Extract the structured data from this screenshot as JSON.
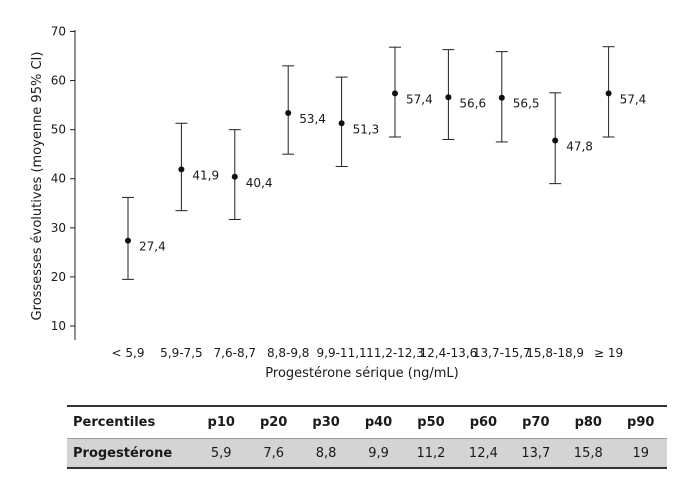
{
  "chart_data": {
    "type": "errorbar",
    "xlabel": "Progestérone sérique (ng/mL)",
    "ylabel": "Grossesses évolutives (moyenne 95% CI)",
    "ylim": [
      10,
      70
    ],
    "yticks": [
      10,
      20,
      30,
      40,
      50,
      60,
      70
    ],
    "grid": false,
    "categories": [
      "< 5,9",
      "5,9-7,5",
      "7,6-8,7",
      "8,8-9,8",
      "9,9-11,1",
      "11,2-12,3",
      "12,4-13,6",
      "13,7-15,7",
      "15,8-18,9",
      "≥ 19"
    ],
    "series": [
      {
        "values": [
          27.4,
          41.9,
          40.4,
          53.4,
          51.3,
          57.4,
          56.6,
          56.5,
          47.8,
          57.4
        ],
        "value_labels": [
          "27,4",
          "41,9",
          "40,4",
          "53,4",
          "51,3",
          "57,4",
          "56,6",
          "56,5",
          "47,8",
          "57,4"
        ],
        "ci_low": [
          19.5,
          33.5,
          31.7,
          45,
          42.5,
          48.5,
          48,
          47.5,
          39,
          48.5
        ],
        "ci_high": [
          36.2,
          51.3,
          50,
          63,
          60.7,
          66.8,
          66.3,
          65.9,
          57.5,
          66.9
        ]
      }
    ]
  },
  "table": {
    "header": "Percentiles",
    "row_label": "Progestérone",
    "percentiles": [
      "p10",
      "p20",
      "p30",
      "p40",
      "p50",
      "p60",
      "p70",
      "p80",
      "p90"
    ],
    "values": [
      "5,9",
      "7,6",
      "8,8",
      "9,9",
      "11,2",
      "12,4",
      "13,7",
      "15,8",
      "19"
    ]
  }
}
